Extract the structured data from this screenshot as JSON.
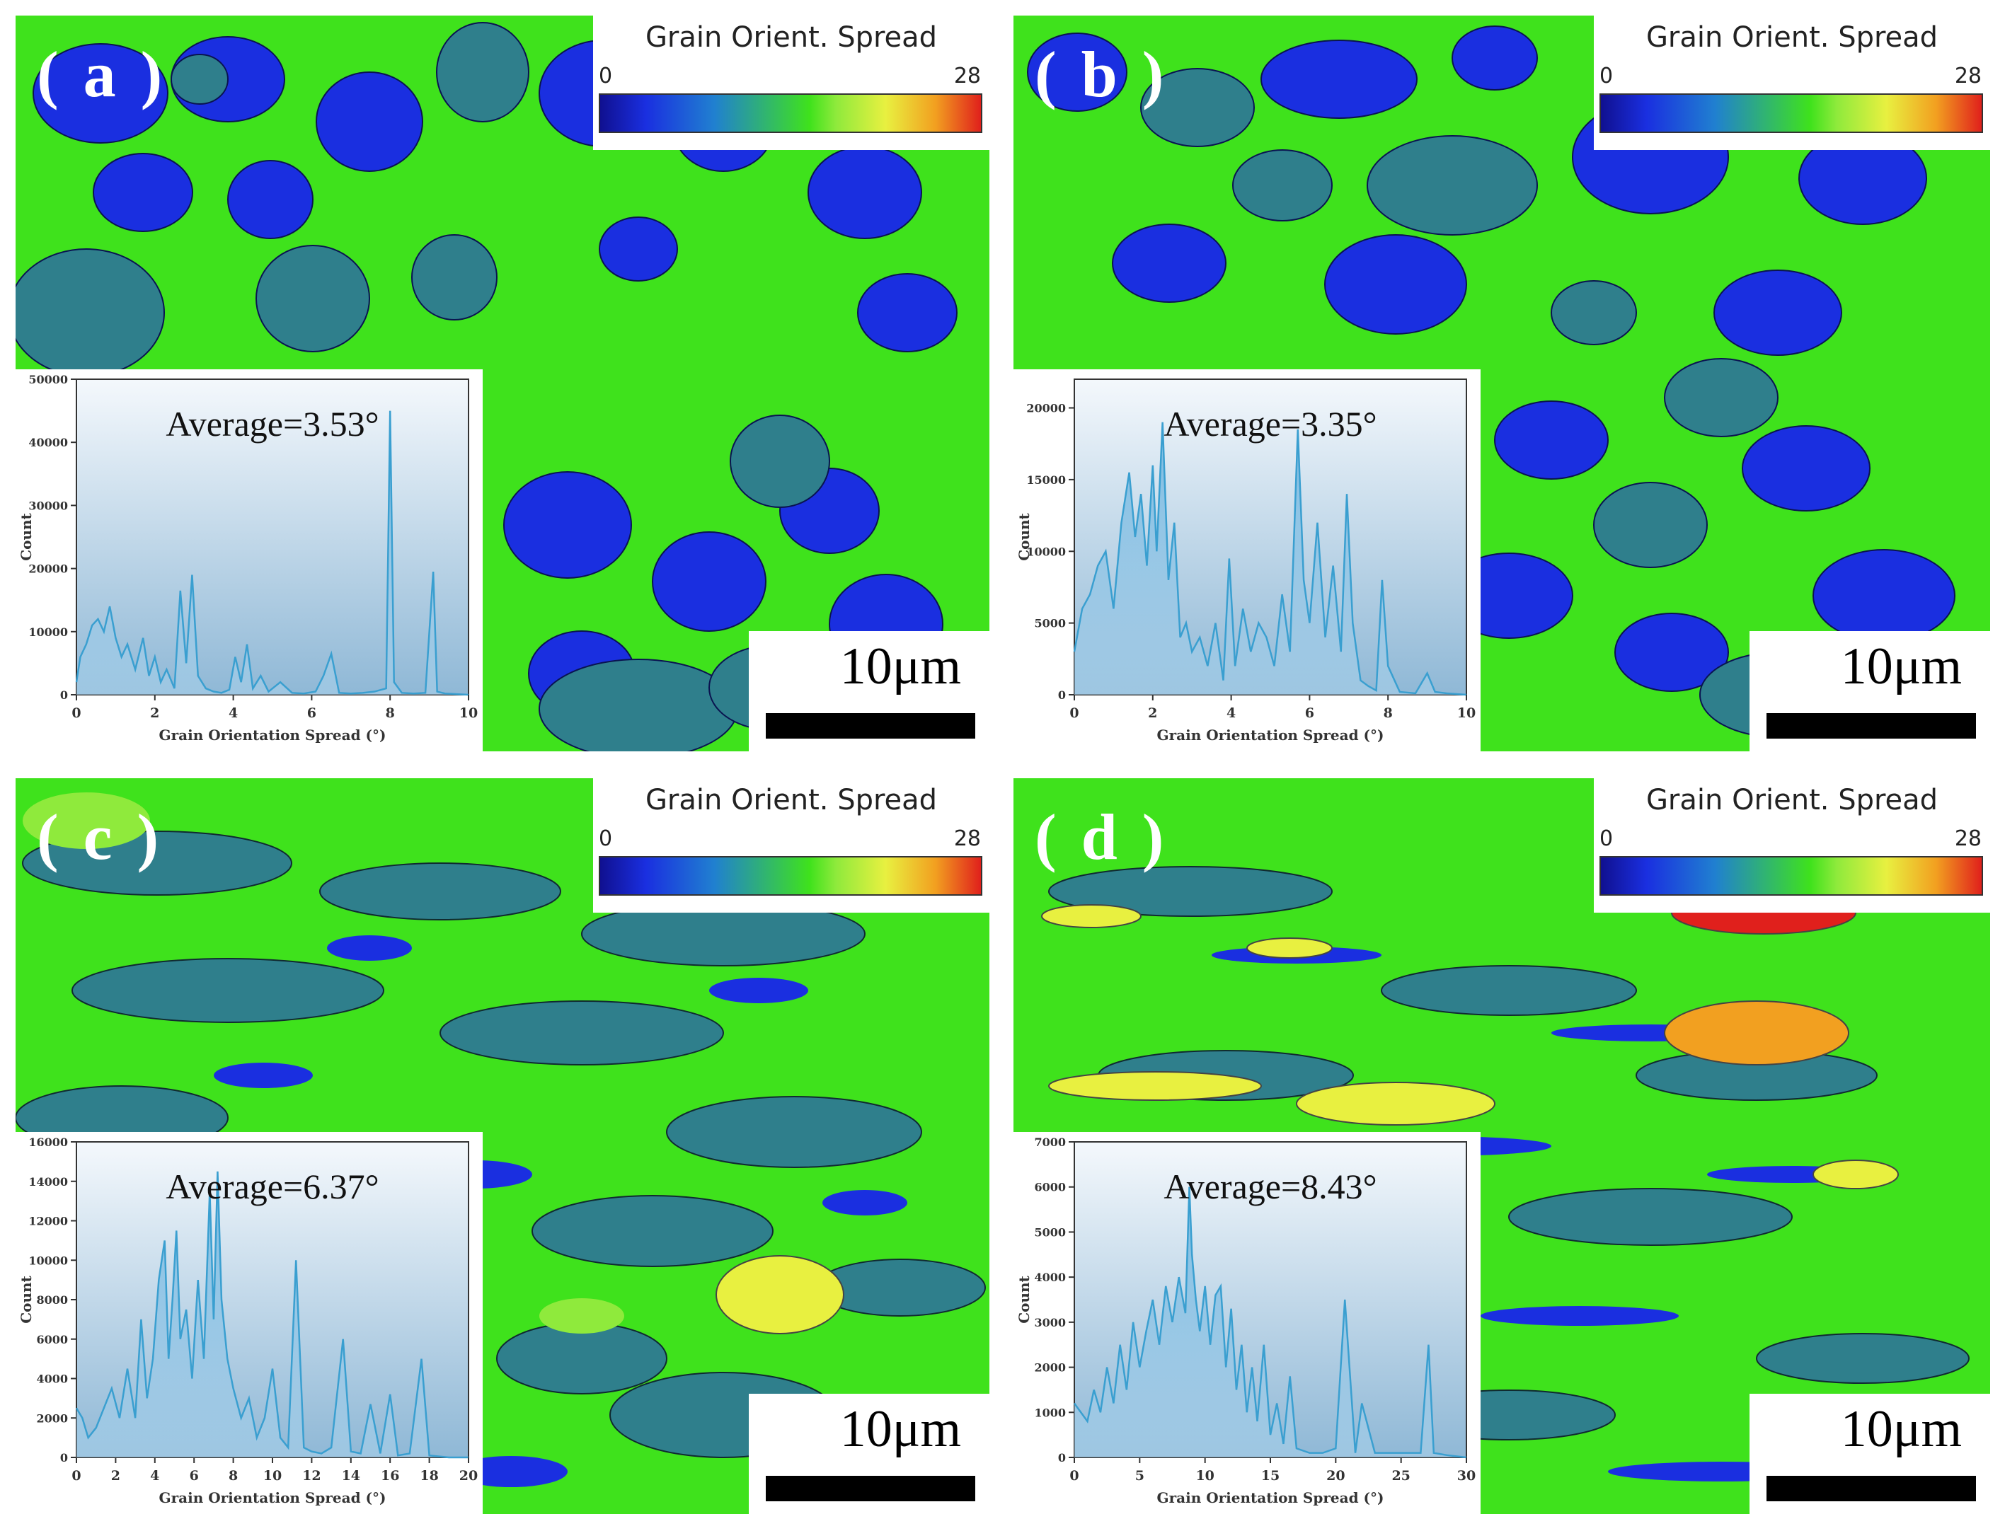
{
  "legend": {
    "title": "Grain Orient. Spread",
    "min": "0",
    "max": "28"
  },
  "scale_label": "10μm",
  "panels": [
    {
      "letter": "( a )",
      "annotation": "Average=3.53°"
    },
    {
      "letter": "( b )",
      "annotation": "Average=3.35°"
    },
    {
      "letter": "( c )",
      "annotation": "Average=6.37°"
    },
    {
      "letter": "( d )",
      "annotation": "Average=8.43°"
    }
  ],
  "colors": {
    "blue": "#1a2fe0",
    "teal": "#2f7f8c",
    "green": "#3fe21c",
    "lightgreen": "#8fea3c",
    "yellow": "#e8f040",
    "orange": "#f2a020",
    "red": "#e0201c",
    "line": "#3a9fd0"
  },
  "chart_data": [
    {
      "type": "area",
      "xlabel": "Grain Orientation Spread (°)",
      "ylabel": "Count",
      "xlim": [
        0,
        10
      ],
      "ylim": [
        0,
        50000
      ],
      "xticks": [
        0,
        2,
        4,
        6,
        8,
        10
      ],
      "yticks": [
        0,
        10000,
        20000,
        30000,
        40000,
        50000
      ],
      "x": [
        0,
        0.1,
        0.25,
        0.4,
        0.55,
        0.7,
        0.85,
        1.0,
        1.15,
        1.3,
        1.5,
        1.7,
        1.85,
        2.0,
        2.15,
        2.3,
        2.5,
        2.65,
        2.8,
        2.95,
        3.1,
        3.3,
        3.5,
        3.7,
        3.9,
        4.05,
        4.2,
        4.35,
        4.5,
        4.7,
        4.9,
        5.2,
        5.5,
        5.8,
        6.1,
        6.3,
        6.5,
        6.7,
        7.0,
        7.3,
        7.6,
        7.9,
        8.0,
        8.1,
        8.3,
        8.6,
        8.9,
        9.1,
        9.2,
        9.4,
        9.7,
        10.0
      ],
      "y": [
        2000,
        6000,
        8000,
        11000,
        12000,
        10000,
        14000,
        9000,
        6000,
        8000,
        4000,
        9000,
        3000,
        6000,
        2000,
        4000,
        1000,
        16500,
        5000,
        19000,
        3000,
        1000,
        500,
        300,
        800,
        6000,
        2000,
        8000,
        1000,
        3000,
        500,
        2000,
        300,
        200,
        500,
        3000,
        6500,
        300,
        200,
        300,
        500,
        1000,
        45000,
        2000,
        300,
        200,
        300,
        19500,
        500,
        200,
        100,
        0
      ]
    },
    {
      "type": "area",
      "xlabel": "Grain Orientation Spread (°)",
      "ylabel": "Count",
      "xlim": [
        0,
        10
      ],
      "ylim": [
        0,
        22000
      ],
      "xticks": [
        0,
        2,
        4,
        6,
        8,
        10
      ],
      "yticks": [
        0,
        5000,
        10000,
        15000,
        20000
      ],
      "x": [
        0,
        0.2,
        0.4,
        0.6,
        0.8,
        1.0,
        1.2,
        1.4,
        1.55,
        1.7,
        1.85,
        2.0,
        2.1,
        2.25,
        2.4,
        2.55,
        2.7,
        2.85,
        3.0,
        3.2,
        3.4,
        3.6,
        3.8,
        3.95,
        4.1,
        4.3,
        4.5,
        4.7,
        4.9,
        5.1,
        5.3,
        5.5,
        5.7,
        5.85,
        6.0,
        6.2,
        6.4,
        6.6,
        6.8,
        6.95,
        7.1,
        7.3,
        7.5,
        7.7,
        7.85,
        8.0,
        8.3,
        8.7,
        9.0,
        9.2,
        9.5,
        10.0
      ],
      "y": [
        3000,
        6000,
        7000,
        9000,
        10000,
        6000,
        12000,
        15500,
        11000,
        14000,
        9000,
        16000,
        10000,
        19000,
        8000,
        12000,
        4000,
        5000,
        3000,
        4000,
        2000,
        5000,
        1000,
        9500,
        2000,
        6000,
        3000,
        5000,
        4000,
        2000,
        7000,
        3000,
        18500,
        8000,
        5000,
        12000,
        4000,
        9000,
        3000,
        14000,
        5000,
        1000,
        600,
        300,
        8000,
        2000,
        200,
        100,
        1500,
        200,
        100,
        0
      ]
    },
    {
      "type": "area",
      "xlabel": "Grain Orientation Spread (°)",
      "ylabel": "Count",
      "xlim": [
        0,
        20
      ],
      "ylim": [
        0,
        16000
      ],
      "xticks": [
        0,
        2,
        4,
        6,
        8,
        10,
        12,
        14,
        16,
        18,
        20
      ],
      "yticks": [
        0,
        2000,
        4000,
        6000,
        8000,
        10000,
        12000,
        14000,
        16000
      ],
      "x": [
        0,
        0.3,
        0.6,
        1.0,
        1.4,
        1.8,
        2.2,
        2.6,
        3.0,
        3.3,
        3.6,
        3.9,
        4.2,
        4.5,
        4.7,
        4.9,
        5.1,
        5.3,
        5.6,
        5.9,
        6.2,
        6.5,
        6.8,
        7.0,
        7.2,
        7.4,
        7.7,
        8.0,
        8.4,
        8.8,
        9.2,
        9.6,
        10.0,
        10.4,
        10.8,
        11.2,
        11.6,
        12.0,
        12.5,
        13.0,
        13.6,
        14.0,
        14.5,
        15.0,
        15.5,
        16.0,
        16.4,
        17.0,
        17.6,
        18.0,
        19.0,
        20.0
      ],
      "y": [
        2500,
        2000,
        1000,
        1500,
        2500,
        3500,
        2000,
        4500,
        2000,
        7000,
        3000,
        5000,
        9000,
        11000,
        5000,
        8000,
        11500,
        6000,
        7500,
        4000,
        9000,
        5000,
        13500,
        7000,
        14500,
        8000,
        5000,
        3500,
        2000,
        3000,
        1000,
        2000,
        4500,
        1000,
        500,
        10000,
        500,
        300,
        200,
        500,
        6000,
        300,
        200,
        2700,
        200,
        3200,
        100,
        200,
        5000,
        100,
        0,
        0
      ]
    },
    {
      "type": "area",
      "xlabel": "Grain Orientation Spread (°)",
      "ylabel": "Count",
      "xlim": [
        0,
        30
      ],
      "ylim": [
        0,
        7000
      ],
      "xticks": [
        0,
        5,
        10,
        15,
        20,
        25,
        30
      ],
      "yticks": [
        0,
        1000,
        2000,
        3000,
        4000,
        5000,
        6000,
        7000
      ],
      "x": [
        0,
        0.5,
        1.0,
        1.5,
        2.0,
        2.5,
        3.0,
        3.5,
        4.0,
        4.5,
        5.0,
        5.5,
        6.0,
        6.5,
        7.0,
        7.5,
        8.0,
        8.5,
        8.8,
        9.0,
        9.3,
        9.6,
        10.0,
        10.4,
        10.8,
        11.2,
        11.6,
        12.0,
        12.4,
        12.8,
        13.2,
        13.6,
        14.0,
        14.5,
        15.0,
        15.5,
        16.0,
        16.5,
        17.0,
        18.0,
        19.0,
        20.0,
        20.7,
        21.5,
        22.0,
        23.0,
        25.0,
        26.5,
        27.1,
        27.5,
        28.5,
        30.0
      ],
      "y": [
        1200,
        1000,
        800,
        1500,
        1000,
        2000,
        1200,
        2500,
        1500,
        3000,
        2000,
        2800,
        3500,
        2500,
        3800,
        3000,
        4000,
        3200,
        6000,
        4500,
        3500,
        2800,
        3800,
        2500,
        3600,
        3800,
        2000,
        3300,
        1500,
        2500,
        1000,
        2000,
        800,
        2500,
        500,
        1200,
        300,
        1800,
        200,
        100,
        100,
        200,
        3500,
        100,
        1200,
        100,
        100,
        100,
        2500,
        100,
        50,
        0
      ]
    }
  ]
}
